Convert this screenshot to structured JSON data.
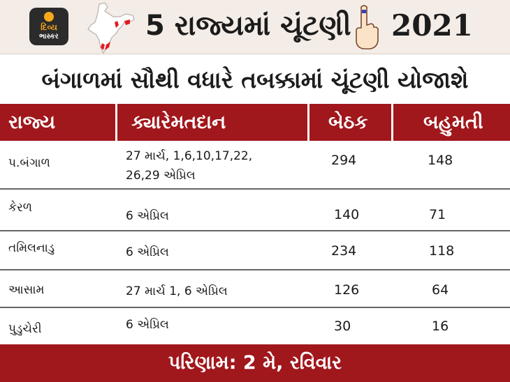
{
  "header": {
    "logo": {
      "line1": "દિવ્ય",
      "line2": "ભાસ્કર"
    },
    "title": "5 રાજ્યમાં ચૂંટણી",
    "year": "2021"
  },
  "subtitle": "બંગાળમાં સૌથી વધારે તબક્કામાં ચૂંટણી યોજાશે",
  "table": {
    "columns": [
      "રાજ્ય",
      "ક્યારેમતદાન",
      "બેઠક",
      "બહુમતી"
    ],
    "rows": [
      {
        "state": "પ.બંગાળ",
        "date_line1": "27 માર્ચ, 1,6,10,17,22,",
        "date_line2": "26,29 એપ્રિલ",
        "seats": "294",
        "majority": "148"
      },
      {
        "state": "કેરળ",
        "date_line1": "6 એપ્રિલ",
        "seats": "140",
        "majority": "71"
      },
      {
        "state": "તમિલનાડુ",
        "date_line1": "6 એપ્રિલ",
        "seats": "234",
        "majority": "118"
      },
      {
        "state": "આસામ",
        "date_line1": "27 માર્ચ 1, 6 એપ્રિલ",
        "seats": "126",
        "majority": "64"
      },
      {
        "state": "પુડુચેરી",
        "date_line1": "6 એપ્રિલ",
        "seats": "30",
        "majority": "16"
      }
    ]
  },
  "footer": "પરિણામ: 2 મે, રવિવાર",
  "colors": {
    "header_red": "#a0171c",
    "header_bg": "#f4ede7",
    "logo_orange": "#f7a81b"
  },
  "icons": [
    "india-map-icon",
    "voting-finger-icon"
  ]
}
